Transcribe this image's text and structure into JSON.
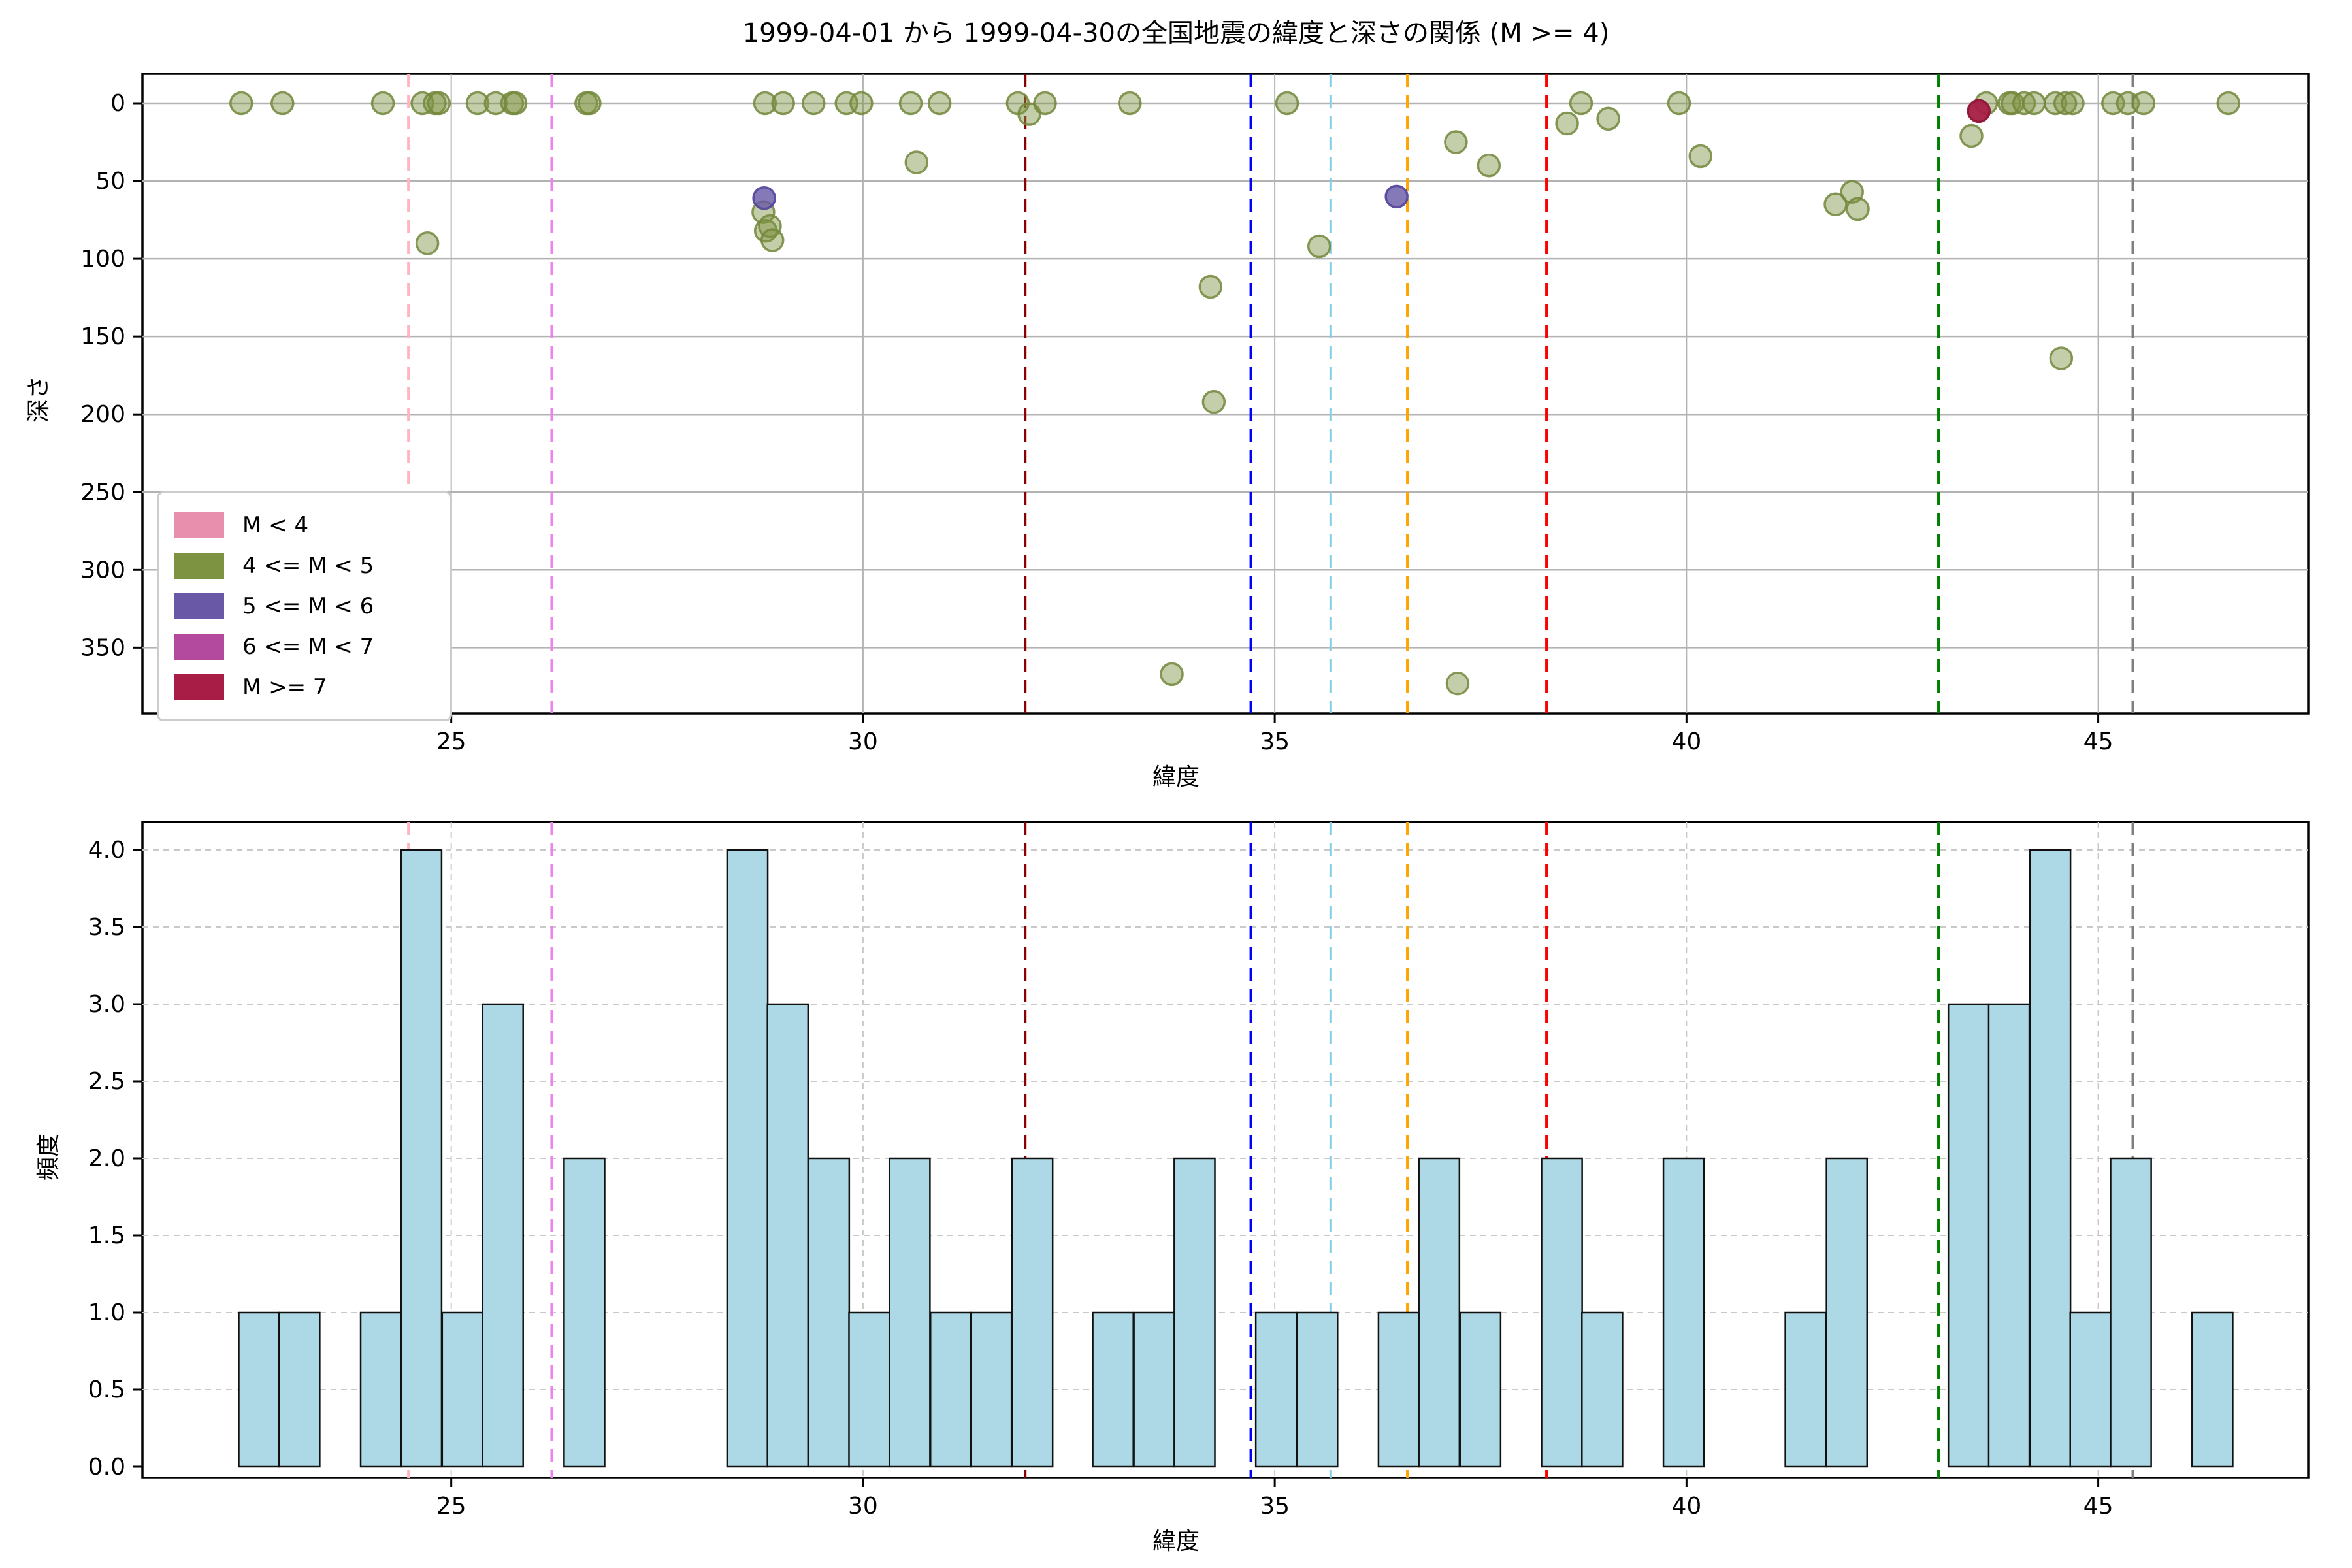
{
  "title": "1999-04-01 から 1999-04-30の全国地震の緯度と深さの関係 (M >= 4)",
  "panels": {
    "scatter": {
      "xlabel": "緯度",
      "ylabel": "深さ",
      "xticks": [
        25,
        30,
        35,
        40,
        45
      ],
      "yticks": [
        0,
        50,
        100,
        150,
        200,
        250,
        300,
        350
      ],
      "xlim": [
        21.25,
        47.55
      ],
      "ylim": [
        -19,
        392
      ],
      "grid": "solid"
    },
    "histogram": {
      "xlabel": "緯度",
      "ylabel": "頻度",
      "xticks": [
        25,
        30,
        35,
        40,
        45
      ],
      "yticks": [
        "0.0",
        "0.5",
        "1.0",
        "1.5",
        "2.0",
        "2.5",
        "3.0",
        "3.5",
        "4.0"
      ],
      "xlim": [
        21.25,
        47.55
      ],
      "ylim": [
        0,
        4.2
      ],
      "grid": "dashed"
    }
  },
  "legend": {
    "position": "lower-left",
    "items": [
      {
        "label": "M < 4",
        "color": "#e78fac"
      },
      {
        "label": "4 <= M < 5",
        "color": "#7e9342"
      },
      {
        "label": "5 <= M < 6",
        "color": "#6858a5"
      },
      {
        "label": "6 <= M < 7",
        "color": "#b34a9e"
      },
      {
        "label": "M >= 7",
        "color": "#a81d45"
      }
    ]
  },
  "vlines": [
    {
      "lat": 24.48,
      "color": "#ffb6c1"
    },
    {
      "lat": 26.22,
      "color": "#ee82ee"
    },
    {
      "lat": 31.97,
      "color": "#8b0000"
    },
    {
      "lat": 34.71,
      "color": "#0000ff"
    },
    {
      "lat": 35.68,
      "color": "#87ceeb"
    },
    {
      "lat": 36.61,
      "color": "#ffa500"
    },
    {
      "lat": 38.3,
      "color": "#ff0000"
    },
    {
      "lat": 43.06,
      "color": "#008000"
    },
    {
      "lat": 45.42,
      "color": "#7f7f7f"
    }
  ],
  "chart_data": [
    {
      "type": "scatter",
      "title": "1999-04-01 から 1999-04-30の全国地震の緯度と深さの関係 (M >= 4)",
      "xlabel": "緯度",
      "ylabel": "深さ",
      "xlim": [
        21.25,
        47.55
      ],
      "ylim_depth_inverted": [
        -19,
        392
      ],
      "series": [
        {
          "name": "4 <= M < 5",
          "fill": "#7e9342",
          "points": [
            {
              "lat": 22.45,
              "depth": 0
            },
            {
              "lat": 22.95,
              "depth": 0
            },
            {
              "lat": 24.17,
              "depth": 0
            },
            {
              "lat": 24.65,
              "depth": 0
            },
            {
              "lat": 24.8,
              "depth": 0
            },
            {
              "lat": 24.85,
              "depth": 0
            },
            {
              "lat": 24.71,
              "depth": 90
            },
            {
              "lat": 25.32,
              "depth": 0
            },
            {
              "lat": 25.54,
              "depth": 0
            },
            {
              "lat": 25.74,
              "depth": 0
            },
            {
              "lat": 25.78,
              "depth": 0
            },
            {
              "lat": 26.64,
              "depth": 0
            },
            {
              "lat": 26.68,
              "depth": 0
            },
            {
              "lat": 28.81,
              "depth": 0
            },
            {
              "lat": 28.79,
              "depth": 70
            },
            {
              "lat": 28.82,
              "depth": 82
            },
            {
              "lat": 28.87,
              "depth": 79
            },
            {
              "lat": 28.9,
              "depth": 88
            },
            {
              "lat": 29.03,
              "depth": 0
            },
            {
              "lat": 29.4,
              "depth": 0
            },
            {
              "lat": 29.8,
              "depth": 0
            },
            {
              "lat": 29.98,
              "depth": 0
            },
            {
              "lat": 30.58,
              "depth": 0
            },
            {
              "lat": 30.65,
              "depth": 38
            },
            {
              "lat": 30.93,
              "depth": 0
            },
            {
              "lat": 31.88,
              "depth": 0
            },
            {
              "lat": 32.02,
              "depth": 7
            },
            {
              "lat": 32.21,
              "depth": 0
            },
            {
              "lat": 33.24,
              "depth": 0
            },
            {
              "lat": 33.75,
              "depth": 367
            },
            {
              "lat": 34.22,
              "depth": 118
            },
            {
              "lat": 34.26,
              "depth": 192
            },
            {
              "lat": 35.15,
              "depth": 0
            },
            {
              "lat": 35.54,
              "depth": 92
            },
            {
              "lat": 37.2,
              "depth": 25
            },
            {
              "lat": 37.22,
              "depth": 373
            },
            {
              "lat": 37.6,
              "depth": 40
            },
            {
              "lat": 38.55,
              "depth": 13
            },
            {
              "lat": 38.72,
              "depth": 0
            },
            {
              "lat": 39.05,
              "depth": 10
            },
            {
              "lat": 39.91,
              "depth": 0
            },
            {
              "lat": 40.17,
              "depth": 34
            },
            {
              "lat": 41.81,
              "depth": 65
            },
            {
              "lat": 42.01,
              "depth": 57
            },
            {
              "lat": 42.08,
              "depth": 68
            },
            {
              "lat": 43.46,
              "depth": 21
            },
            {
              "lat": 43.64,
              "depth": 0
            },
            {
              "lat": 43.92,
              "depth": 0
            },
            {
              "lat": 43.96,
              "depth": 0
            },
            {
              "lat": 44.1,
              "depth": 0
            },
            {
              "lat": 44.22,
              "depth": 0
            },
            {
              "lat": 44.48,
              "depth": 0
            },
            {
              "lat": 44.55,
              "depth": 164
            },
            {
              "lat": 44.6,
              "depth": 0
            },
            {
              "lat": 44.69,
              "depth": 0
            },
            {
              "lat": 45.18,
              "depth": 0
            },
            {
              "lat": 45.36,
              "depth": 0
            },
            {
              "lat": 45.55,
              "depth": 0
            },
            {
              "lat": 46.58,
              "depth": 0
            }
          ]
        },
        {
          "name": "5 <= M < 6",
          "fill": "#6858a5",
          "points": [
            {
              "lat": 28.8,
              "depth": 61
            },
            {
              "lat": 36.48,
              "depth": 60
            }
          ]
        },
        {
          "name": "M >= 7",
          "fill": "#a81d45",
          "points": [
            {
              "lat": 43.55,
              "depth": 5
            }
          ]
        }
      ]
    },
    {
      "type": "bar",
      "subtype": "histogram",
      "xlabel": "緯度",
      "ylabel": "頻度",
      "bar_color": "#add8e6",
      "bar_edge": "#111111",
      "bin_width": 0.493,
      "ylim": [
        0,
        4.2
      ],
      "bars": [
        {
          "start": 22.42,
          "count": 1
        },
        {
          "start": 22.91,
          "count": 1
        },
        {
          "start": 23.9,
          "count": 1
        },
        {
          "start": 24.39,
          "count": 4
        },
        {
          "start": 24.89,
          "count": 1
        },
        {
          "start": 25.38,
          "count": 3
        },
        {
          "start": 26.37,
          "count": 2
        },
        {
          "start": 28.35,
          "count": 4
        },
        {
          "start": 28.84,
          "count": 3
        },
        {
          "start": 29.34,
          "count": 2
        },
        {
          "start": 29.83,
          "count": 1
        },
        {
          "start": 30.32,
          "count": 2
        },
        {
          "start": 30.82,
          "count": 1
        },
        {
          "start": 31.31,
          "count": 1
        },
        {
          "start": 31.81,
          "count": 2
        },
        {
          "start": 32.79,
          "count": 1
        },
        {
          "start": 33.29,
          "count": 1
        },
        {
          "start": 33.78,
          "count": 2
        },
        {
          "start": 34.77,
          "count": 1
        },
        {
          "start": 35.27,
          "count": 1
        },
        {
          "start": 36.26,
          "count": 1
        },
        {
          "start": 36.75,
          "count": 2
        },
        {
          "start": 37.25,
          "count": 1
        },
        {
          "start": 38.24,
          "count": 2
        },
        {
          "start": 38.73,
          "count": 1
        },
        {
          "start": 39.72,
          "count": 2
        },
        {
          "start": 41.2,
          "count": 1
        },
        {
          "start": 41.7,
          "count": 2
        },
        {
          "start": 43.18,
          "count": 3
        },
        {
          "start": 43.67,
          "count": 3
        },
        {
          "start": 44.17,
          "count": 4
        },
        {
          "start": 44.66,
          "count": 1
        },
        {
          "start": 45.15,
          "count": 2
        },
        {
          "start": 46.14,
          "count": 1
        }
      ]
    }
  ],
  "style": {
    "scatter_fill_olive": "#7e9342",
    "scatter_fill_purple": "#6858a5",
    "scatter_fill_crimson": "#a81d45",
    "grid_color_top": "#b3b3b3",
    "grid_color_bottom": "#c9c9c9",
    "spine_color": "#000000",
    "hist_fill": "#add8e6"
  }
}
